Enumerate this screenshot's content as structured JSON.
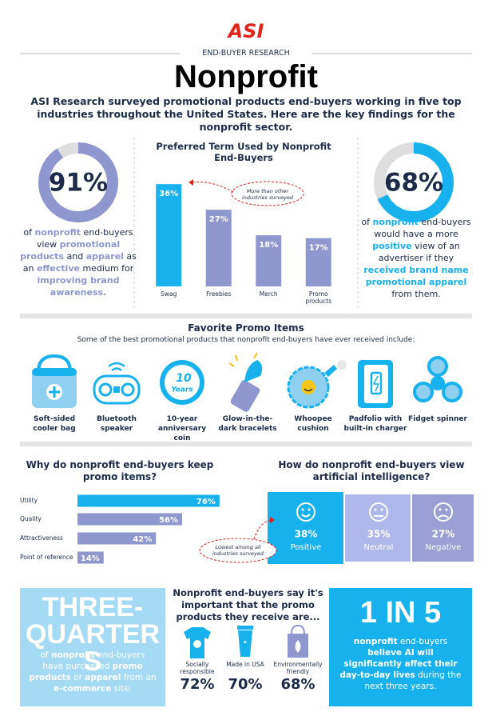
{
  "header": {
    "logo": "ASI",
    "kicker": "END-BUYER RESEARCH",
    "title": "Nonprofit",
    "intro": "ASI Research surveyed promotional products end-buyers working in five top industries throughout the United States. Here are the key findings for the nonprofit sector."
  },
  "chart_data": [
    {
      "type": "donut",
      "values": [
        91
      ],
      "value_labels": [
        "91%"
      ],
      "color": "#8f97cf",
      "track_color": "#dedede"
    },
    {
      "type": "bar",
      "title": "Preferred Term Used by Nonprofit End-Buyers",
      "categories": [
        "Swag",
        "Freebies",
        "Merch",
        "Promo products"
      ],
      "values": [
        36,
        27,
        18,
        17
      ],
      "value_labels": [
        "36%",
        "27%",
        "18%",
        "17%"
      ],
      "colors": [
        "#17b1ee",
        "#8f97cf",
        "#8f97cf",
        "#8f97cf"
      ],
      "ylim": [
        0,
        40
      ],
      "annotation": "More than other industries surveyed"
    },
    {
      "type": "donut",
      "values": [
        68
      ],
      "value_labels": [
        "68%"
      ],
      "color": "#17b1ee",
      "track_color": "#dedede"
    },
    {
      "type": "hbar",
      "title": "Why do nonprofit end-buyers keep promo items?",
      "categories": [
        "Utility",
        "Quality",
        "Attractiveness",
        "Point of reference"
      ],
      "values": [
        76,
        56,
        42,
        14
      ],
      "value_labels": [
        "76%",
        "56%",
        "42%",
        "14%"
      ],
      "colors": [
        "#17b1ee",
        "#8f97cf",
        "#8f97cf",
        "#8f97cf"
      ],
      "xlim": [
        0,
        100
      ]
    }
  ],
  "left_caption": [
    "of ",
    {
      "text": "nonprofit",
      "bold": true
    },
    " end-buyers view ",
    {
      "text": "promotional products",
      "bold": true
    },
    " and ",
    {
      "text": "apparel",
      "bold": true
    },
    " as an ",
    {
      "text": "effective",
      "bold": true
    },
    " medium for ",
    {
      "text": "improving brand awareness.",
      "bold": true
    }
  ],
  "right_caption": [
    "of ",
    {
      "text": "nonprofit",
      "bold": true
    },
    " end-buyers would have a more ",
    {
      "text": "positive",
      "bold": true
    },
    " view of an advertiser if they ",
    {
      "text": "received brand name promotional apparel",
      "bold": true
    },
    " from them."
  ],
  "favorites": {
    "title": "Favorite Promo Items",
    "subtitle": "Some of the best promotional products that nonprofit end-buyers have ever received include:",
    "coin_text": [
      "10",
      "Years"
    ],
    "items": [
      "Soft-sided cooler bag",
      "Bluetooth speaker",
      "10-year anniversary coin",
      "Glow-in-the-dark bracelets",
      "Whoopee cushion",
      "Padfolio with built-in charger",
      "Fidget spinner"
    ]
  },
  "ai": {
    "title": "How do nonprofit end-buyers view artificial intelligence?",
    "options": [
      {
        "value": "38%",
        "label": "Positive"
      },
      {
        "value": "35%",
        "label": "Neutral"
      },
      {
        "value": "27%",
        "label": "Negative"
      }
    ],
    "annotation": "Lowest among all industries surveyed"
  },
  "three_quarters": {
    "headline": "THREE-QUARTERS",
    "text": [
      "of ",
      {
        "text": "nonprofit",
        "bold": true
      },
      " end-buyers have purchased ",
      {
        "text": "promo products",
        "bold": true
      },
      " or ",
      {
        "text": "apparel",
        "bold": true
      },
      " from an ",
      {
        "text": "e-commerce",
        "bold": true
      },
      " site."
    ]
  },
  "important": {
    "title": "Nonprofit end-buyers say it's important that the promo products they receive are...",
    "items": [
      {
        "label": "Socially responsible",
        "value": "72%"
      },
      {
        "label": "Made in USA",
        "value": "70%"
      },
      {
        "label": "Environmentally friendly",
        "value": "68%"
      }
    ]
  },
  "one_in_five": {
    "headline": "1 IN 5",
    "text": [
      {
        "text": "nonprofit",
        "bold": true
      },
      " end-buyers ",
      {
        "text": "believe AI will significantly affect their day-to-day lives",
        "bold": true
      },
      " during the next three years."
    ]
  }
}
